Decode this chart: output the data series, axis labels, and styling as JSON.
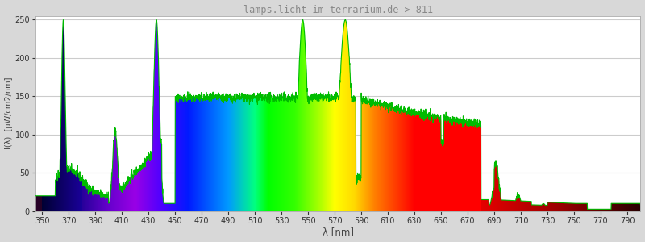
{
  "title": "lamps.licht-im-terrarium.de > 811",
  "xlabel": "λ [nm]",
  "ylabel": "I(λ)  [µW/cm2/nm]",
  "xlim": [
    345,
    800
  ],
  "ylim": [
    0,
    255
  ],
  "yticks": [
    0,
    50,
    100,
    150,
    200,
    250
  ],
  "xticks": [
    350,
    370,
    390,
    410,
    430,
    450,
    470,
    490,
    510,
    530,
    550,
    570,
    590,
    610,
    630,
    650,
    670,
    690,
    710,
    730,
    750,
    770,
    790
  ],
  "bg_color": "#d8d8d8",
  "plot_bg_color": "#ffffff",
  "line_color": "#00bb00",
  "title_color": "#888888",
  "grid_color": "#cccccc",
  "figsize": [
    8.0,
    3.0
  ],
  "dpi": 100
}
